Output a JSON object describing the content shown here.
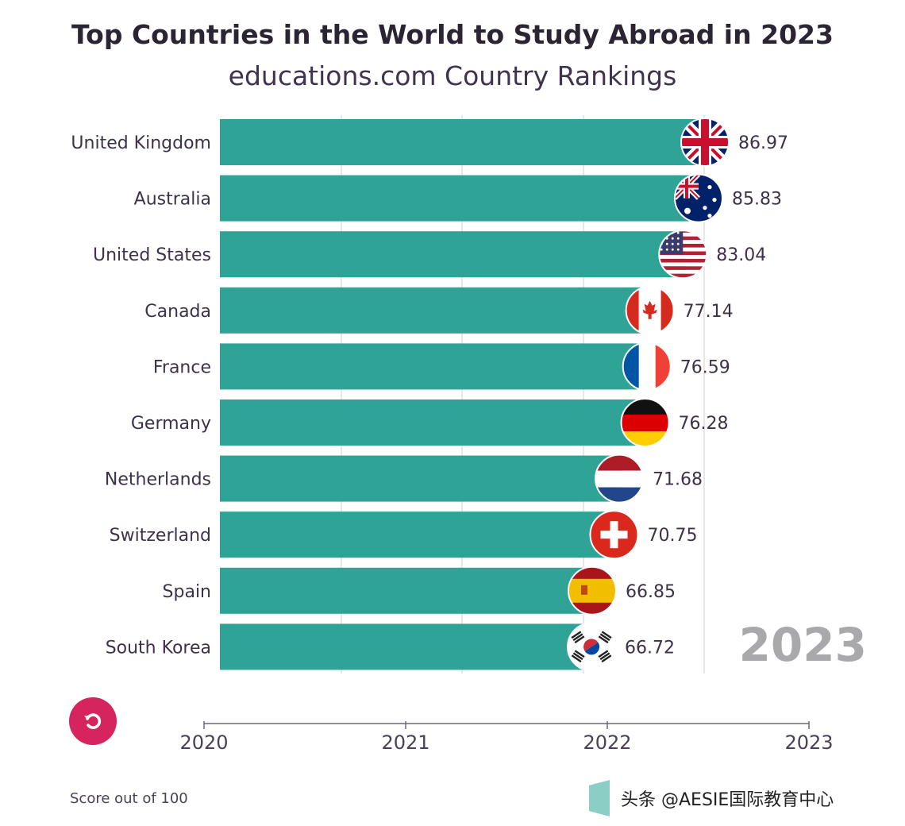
{
  "chart_data": {
    "type": "bar",
    "orientation": "horizontal",
    "title": "Top Countries in the World to Study Abroad in 2023",
    "subtitle": "educations.com Country Rankings",
    "categories": [
      "United Kingdom",
      "Australia",
      "United States",
      "Canada",
      "France",
      "Germany",
      "Netherlands",
      "Switzerland",
      "Spain",
      "South Korea"
    ],
    "values": [
      86.97,
      85.83,
      83.04,
      77.14,
      76.59,
      76.28,
      71.68,
      70.75,
      66.85,
      66.72
    ],
    "value_labels": [
      "86.97",
      "85.83",
      "83.04",
      "77.14",
      "76.59",
      "76.28",
      "71.68",
      "70.75",
      "66.85",
      "66.72"
    ],
    "flag_icons": [
      "uk-flag-icon",
      "australia-flag-icon",
      "usa-flag-icon",
      "canada-flag-icon",
      "france-flag-icon",
      "germany-flag-icon",
      "netherlands-flag-icon",
      "switzerland-flag-icon",
      "spain-flag-icon",
      "south-korea-flag-icon"
    ],
    "bar_color": "#2ea396",
    "current_year": "2023",
    "timeline": {
      "ticks": [
        "2020",
        "2021",
        "2022",
        "2023"
      ],
      "position": 2.95
    },
    "footnote": "Score out of 100"
  },
  "controls": {
    "replay_icon": "replay-icon",
    "replay_color": "#d5245e"
  },
  "watermark": {
    "text": "头条 @AESIE国际教育中心"
  }
}
